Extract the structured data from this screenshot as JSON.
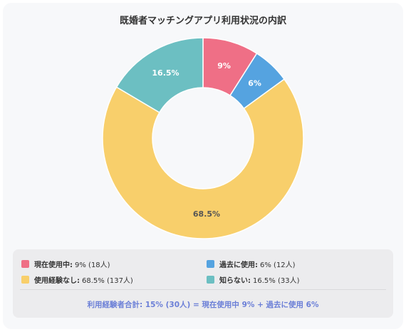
{
  "chart_data": {
    "type": "pie",
    "donut": true,
    "title": "既婚者マッチングアプリ利用状況の内訳",
    "categories": [
      "現在使用中",
      "過去に使用",
      "使用経験なし",
      "知らない"
    ],
    "values": [
      9,
      6,
      68.5,
      16.5
    ],
    "slice_labels": [
      "9%",
      "6%",
      "68.5%",
      "16.5%"
    ],
    "colors": [
      "#ef6f86",
      "#55a3e0",
      "#f8cf6b",
      "#6cbfc2"
    ],
    "label_colors": [
      "#ffffff",
      "#ffffff",
      "#555555",
      "#ffffff"
    ],
    "legend_placement": "bottom"
  },
  "legend": [
    {
      "name": "現在使用中:",
      "value": "9% (18人)",
      "color": "#ef6f86"
    },
    {
      "name": "過去に使用:",
      "value": "6% (12人)",
      "color": "#55a3e0"
    },
    {
      "name": "使用経験なし:",
      "value": "68.5% (137人)",
      "color": "#f8cf6b"
    },
    {
      "name": "知らない:",
      "value": "16.5% (33人)",
      "color": "#6cbfc2"
    }
  ],
  "summary": "利用経験者合計: 15% (30人) = 現在使用中 9% + 過去に使用 6%"
}
